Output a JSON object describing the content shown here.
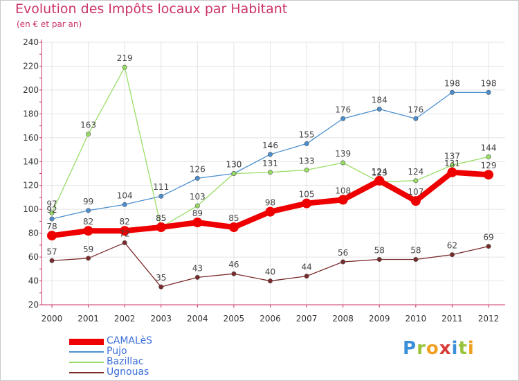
{
  "header": {
    "title": "Evolution des Impôts locaux par Habitant",
    "subtitle": "(en € et par an)"
  },
  "logo": {
    "letters": [
      "P",
      "r",
      "o",
      "x",
      "i",
      "t",
      "i"
    ]
  },
  "colors": {
    "title": "#cc3366",
    "axis": "#cc3366",
    "grid": "#e4e4e4",
    "tick_text": "#333333",
    "legend_text": "#3a6fd8"
  },
  "chart_data": {
    "type": "line",
    "title": "Evolution des Impôts locaux par Habitant",
    "subtitle": "(en € et par an)",
    "xlabel": "",
    "ylabel": "",
    "ylim": [
      20,
      240
    ],
    "yticks": [
      20,
      40,
      60,
      80,
      100,
      120,
      140,
      160,
      180,
      200,
      220,
      240
    ],
    "categories": [
      "2000",
      "2001",
      "2002",
      "2003",
      "2004",
      "2005",
      "2006",
      "2007",
      "2008",
      "2009",
      "2010",
      "2011",
      "2012"
    ],
    "grid": true,
    "legend_position": "bottom-left",
    "series": [
      {
        "name": "CAMALèS",
        "color": "#ee0000",
        "thick": true,
        "values": [
          78,
          82,
          82,
          85,
          89,
          85,
          98,
          105,
          108,
          124,
          107,
          131,
          129
        ]
      },
      {
        "name": "Pujo",
        "color": "#4a8fd0",
        "thick": false,
        "values": [
          92,
          99,
          104,
          111,
          126,
          130,
          146,
          155,
          176,
          184,
          176,
          198,
          198
        ]
      },
      {
        "name": "Bazillac",
        "color": "#99dd66",
        "thick": false,
        "values": [
          97,
          163,
          219,
          85,
          103,
          130,
          131,
          133,
          139,
          123,
          124,
          137,
          144
        ]
      },
      {
        "name": "Ugnouas",
        "color": "#7a2a2a",
        "thick": false,
        "values": [
          57,
          59,
          72,
          35,
          43,
          46,
          40,
          44,
          56,
          58,
          58,
          62,
          69
        ]
      }
    ]
  }
}
